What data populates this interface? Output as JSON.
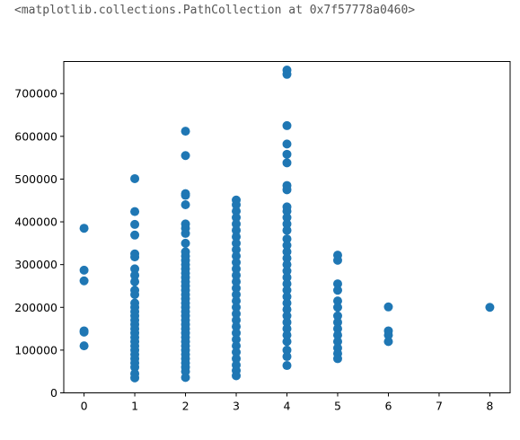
{
  "output_text": "<matplotlib.collections.PathCollection at 0x7f57778a0460>",
  "chart_data": {
    "type": "scatter",
    "title": "",
    "xlabel": "",
    "ylabel": "",
    "xlim": [
      -0.4,
      8.4
    ],
    "ylim": [
      0,
      775000
    ],
    "xticks": [
      0,
      1,
      2,
      3,
      4,
      5,
      6,
      7,
      8
    ],
    "yticks": [
      0,
      100000,
      200000,
      300000,
      400000,
      500000,
      600000,
      700000
    ],
    "xtick_labels": [
      "0",
      "1",
      "2",
      "3",
      "4",
      "5",
      "6",
      "7",
      "8"
    ],
    "ytick_labels": [
      "0",
      "100000",
      "200000",
      "300000",
      "400000",
      "500000",
      "600000",
      "700000"
    ],
    "grid": false,
    "marker_color": "#1f77b4",
    "series": [
      {
        "points": [
          [
            0,
            385000
          ],
          [
            0,
            287000
          ],
          [
            0,
            262000
          ],
          [
            0,
            145000
          ],
          [
            0,
            142000
          ],
          [
            0,
            110000
          ],
          [
            1,
            501000
          ],
          [
            1,
            424000
          ],
          [
            1,
            394000
          ],
          [
            1,
            369000
          ],
          [
            1,
            325000
          ],
          [
            1,
            318000
          ],
          [
            1,
            290000
          ],
          [
            1,
            275000
          ],
          [
            1,
            260000
          ],
          [
            1,
            240000
          ],
          [
            1,
            230000
          ],
          [
            1,
            210000
          ],
          [
            1,
            200000
          ],
          [
            1,
            190000
          ],
          [
            1,
            180000
          ],
          [
            1,
            170000
          ],
          [
            1,
            160000
          ],
          [
            1,
            150000
          ],
          [
            1,
            140000
          ],
          [
            1,
            130000
          ],
          [
            1,
            120000
          ],
          [
            1,
            110000
          ],
          [
            1,
            100000
          ],
          [
            1,
            90000
          ],
          [
            1,
            80000
          ],
          [
            1,
            70000
          ],
          [
            1,
            60000
          ],
          [
            1,
            45000
          ],
          [
            1,
            35000
          ],
          [
            2,
            612000
          ],
          [
            2,
            555000
          ],
          [
            2,
            466000
          ],
          [
            2,
            462000
          ],
          [
            2,
            440000
          ],
          [
            2,
            395000
          ],
          [
            2,
            385000
          ],
          [
            2,
            373000
          ],
          [
            2,
            350000
          ],
          [
            2,
            330000
          ],
          [
            2,
            320000
          ],
          [
            2,
            310000
          ],
          [
            2,
            300000
          ],
          [
            2,
            290000
          ],
          [
            2,
            280000
          ],
          [
            2,
            270000
          ],
          [
            2,
            260000
          ],
          [
            2,
            250000
          ],
          [
            2,
            240000
          ],
          [
            2,
            230000
          ],
          [
            2,
            220000
          ],
          [
            2,
            210000
          ],
          [
            2,
            200000
          ],
          [
            2,
            190000
          ],
          [
            2,
            180000
          ],
          [
            2,
            170000
          ],
          [
            2,
            160000
          ],
          [
            2,
            150000
          ],
          [
            2,
            140000
          ],
          [
            2,
            130000
          ],
          [
            2,
            120000
          ],
          [
            2,
            110000
          ],
          [
            2,
            100000
          ],
          [
            2,
            90000
          ],
          [
            2,
            80000
          ],
          [
            2,
            70000
          ],
          [
            2,
            60000
          ],
          [
            2,
            50000
          ],
          [
            2,
            36000
          ],
          [
            3,
            451000
          ],
          [
            3,
            440000
          ],
          [
            3,
            425000
          ],
          [
            3,
            410000
          ],
          [
            3,
            395000
          ],
          [
            3,
            380000
          ],
          [
            3,
            365000
          ],
          [
            3,
            350000
          ],
          [
            3,
            335000
          ],
          [
            3,
            320000
          ],
          [
            3,
            305000
          ],
          [
            3,
            290000
          ],
          [
            3,
            275000
          ],
          [
            3,
            260000
          ],
          [
            3,
            245000
          ],
          [
            3,
            230000
          ],
          [
            3,
            215000
          ],
          [
            3,
            200000
          ],
          [
            3,
            185000
          ],
          [
            3,
            170000
          ],
          [
            3,
            155000
          ],
          [
            3,
            140000
          ],
          [
            3,
            125000
          ],
          [
            3,
            110000
          ],
          [
            3,
            95000
          ],
          [
            3,
            80000
          ],
          [
            3,
            65000
          ],
          [
            3,
            52000
          ],
          [
            3,
            40000
          ],
          [
            4,
            755000
          ],
          [
            4,
            745000
          ],
          [
            4,
            625000
          ],
          [
            4,
            582000
          ],
          [
            4,
            558000
          ],
          [
            4,
            538000
          ],
          [
            4,
            485000
          ],
          [
            4,
            475000
          ],
          [
            4,
            435000
          ],
          [
            4,
            425000
          ],
          [
            4,
            410000
          ],
          [
            4,
            395000
          ],
          [
            4,
            380000
          ],
          [
            4,
            360000
          ],
          [
            4,
            345000
          ],
          [
            4,
            330000
          ],
          [
            4,
            315000
          ],
          [
            4,
            300000
          ],
          [
            4,
            285000
          ],
          [
            4,
            270000
          ],
          [
            4,
            255000
          ],
          [
            4,
            240000
          ],
          [
            4,
            225000
          ],
          [
            4,
            210000
          ],
          [
            4,
            195000
          ],
          [
            4,
            180000
          ],
          [
            4,
            165000
          ],
          [
            4,
            150000
          ],
          [
            4,
            135000
          ],
          [
            4,
            120000
          ],
          [
            4,
            100000
          ],
          [
            4,
            85000
          ],
          [
            4,
            64000
          ],
          [
            5,
            322000
          ],
          [
            5,
            310000
          ],
          [
            5,
            255000
          ],
          [
            5,
            240000
          ],
          [
            5,
            215000
          ],
          [
            5,
            200000
          ],
          [
            5,
            180000
          ],
          [
            5,
            165000
          ],
          [
            5,
            150000
          ],
          [
            5,
            135000
          ],
          [
            5,
            120000
          ],
          [
            5,
            105000
          ],
          [
            5,
            92000
          ],
          [
            5,
            80000
          ],
          [
            6,
            201000
          ],
          [
            6,
            145000
          ],
          [
            6,
            135000
          ],
          [
            6,
            120000
          ],
          [
            8,
            200000
          ]
        ]
      }
    ]
  }
}
